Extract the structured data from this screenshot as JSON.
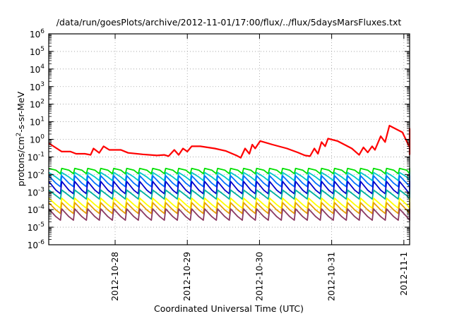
{
  "chart_data": {
    "type": "line",
    "title": "/data/run/goesPlots/archive/2012-11-01/17:00/flux/../flux/5daysMarsFluxes.txt",
    "xlabel": "Coordinated Universal Time (UTC)",
    "ylabel_parts": [
      "protons/cm",
      "2",
      "-s-sr-MeV"
    ],
    "y_scale": "log",
    "ylim": [
      1e-06,
      1000000.0
    ],
    "y_tick_exponents": [
      -6,
      -5,
      -4,
      -3,
      -2,
      -1,
      0,
      1,
      2,
      3,
      4,
      5,
      6
    ],
    "x_range_days": [
      0.0,
      5.0
    ],
    "x_ticks": [
      {
        "label": "2012-10-28",
        "day": 0.92
      },
      {
        "label": "2012-10-29",
        "day": 1.92
      },
      {
        "label": "2012-10-30",
        "day": 2.92
      },
      {
        "label": "2012-10-31",
        "day": 3.92
      },
      {
        "label": "2012-11-1",
        "day": 4.92
      }
    ],
    "sawtooth_period_days": 0.18,
    "series": [
      {
        "id": "s1",
        "color": "#ff0000",
        "width": 2.2,
        "kind": "trend",
        "points": [
          [
            0.0,
            0.6
          ],
          [
            0.18,
            0.2
          ],
          [
            0.3,
            0.2
          ],
          [
            0.38,
            0.15
          ],
          [
            0.5,
            0.15
          ],
          [
            0.58,
            0.13
          ],
          [
            0.62,
            0.3
          ],
          [
            0.7,
            0.17
          ],
          [
            0.76,
            0.4
          ],
          [
            0.84,
            0.25
          ],
          [
            1.0,
            0.25
          ],
          [
            1.1,
            0.17
          ],
          [
            1.3,
            0.14
          ],
          [
            1.5,
            0.12
          ],
          [
            1.6,
            0.13
          ],
          [
            1.66,
            0.11
          ],
          [
            1.74,
            0.25
          ],
          [
            1.8,
            0.13
          ],
          [
            1.86,
            0.3
          ],
          [
            1.92,
            0.2
          ],
          [
            1.98,
            0.4
          ],
          [
            2.1,
            0.4
          ],
          [
            2.3,
            0.3
          ],
          [
            2.45,
            0.22
          ],
          [
            2.6,
            0.12
          ],
          [
            2.66,
            0.09
          ],
          [
            2.72,
            0.3
          ],
          [
            2.78,
            0.15
          ],
          [
            2.82,
            0.5
          ],
          [
            2.86,
            0.3
          ],
          [
            2.93,
            0.8
          ],
          [
            3.1,
            0.5
          ],
          [
            3.3,
            0.3
          ],
          [
            3.45,
            0.18
          ],
          [
            3.55,
            0.12
          ],
          [
            3.62,
            0.11
          ],
          [
            3.68,
            0.3
          ],
          [
            3.73,
            0.15
          ],
          [
            3.78,
            0.7
          ],
          [
            3.83,
            0.4
          ],
          [
            3.87,
            1.1
          ],
          [
            4.0,
            0.8
          ],
          [
            4.2,
            0.3
          ],
          [
            4.3,
            0.13
          ],
          [
            4.36,
            0.35
          ],
          [
            4.42,
            0.18
          ],
          [
            4.48,
            0.4
          ],
          [
            4.52,
            0.25
          ],
          [
            4.6,
            1.5
          ],
          [
            4.66,
            0.7
          ],
          [
            4.72,
            6.0
          ],
          [
            4.9,
            2.5
          ],
          [
            5.1,
            0.35
          ],
          [
            5.2,
            0.17
          ],
          [
            5.27,
            0.14
          ],
          [
            5.32,
            0.6
          ],
          [
            5.38,
            0.3
          ],
          [
            5.42,
            0.8
          ],
          [
            5.46,
            0.45
          ],
          [
            5.5,
            0.7
          ],
          [
            5.52,
            4.0
          ],
          [
            5.56,
            2.5
          ]
        ]
      },
      {
        "id": "s2",
        "color": "#00e000",
        "width": 1.8,
        "kind": "saw",
        "peak": 0.022,
        "low": 0.011
      },
      {
        "id": "s3",
        "color": "#00c8c8",
        "width": 1.8,
        "kind": "saw",
        "peak": 0.013,
        "low": 0.0045
      },
      {
        "id": "s4",
        "color": "#0070ff",
        "width": 1.8,
        "kind": "saw",
        "peak": 0.0085,
        "low": 0.002
      },
      {
        "id": "s5",
        "color": "#0000cc",
        "width": 1.8,
        "kind": "saw",
        "peak": 0.004,
        "low": 0.0008
      },
      {
        "id": "s6",
        "color": "#00b0a0",
        "width": 1.8,
        "kind": "saw",
        "peak": 0.0013,
        "low": 0.0004
      },
      {
        "id": "s7",
        "color": "#ffff00",
        "width": 1.8,
        "kind": "saw",
        "peak": 0.00045,
        "low": 0.00012
      },
      {
        "id": "s8",
        "color": "#e8a000",
        "width": 1.8,
        "kind": "saw",
        "peak": 0.00025,
        "low": 6e-05
      },
      {
        "id": "s9",
        "color": "#8b3a62",
        "width": 1.8,
        "kind": "saw",
        "peak": 0.00011,
        "low": 2.5e-05
      }
    ]
  }
}
